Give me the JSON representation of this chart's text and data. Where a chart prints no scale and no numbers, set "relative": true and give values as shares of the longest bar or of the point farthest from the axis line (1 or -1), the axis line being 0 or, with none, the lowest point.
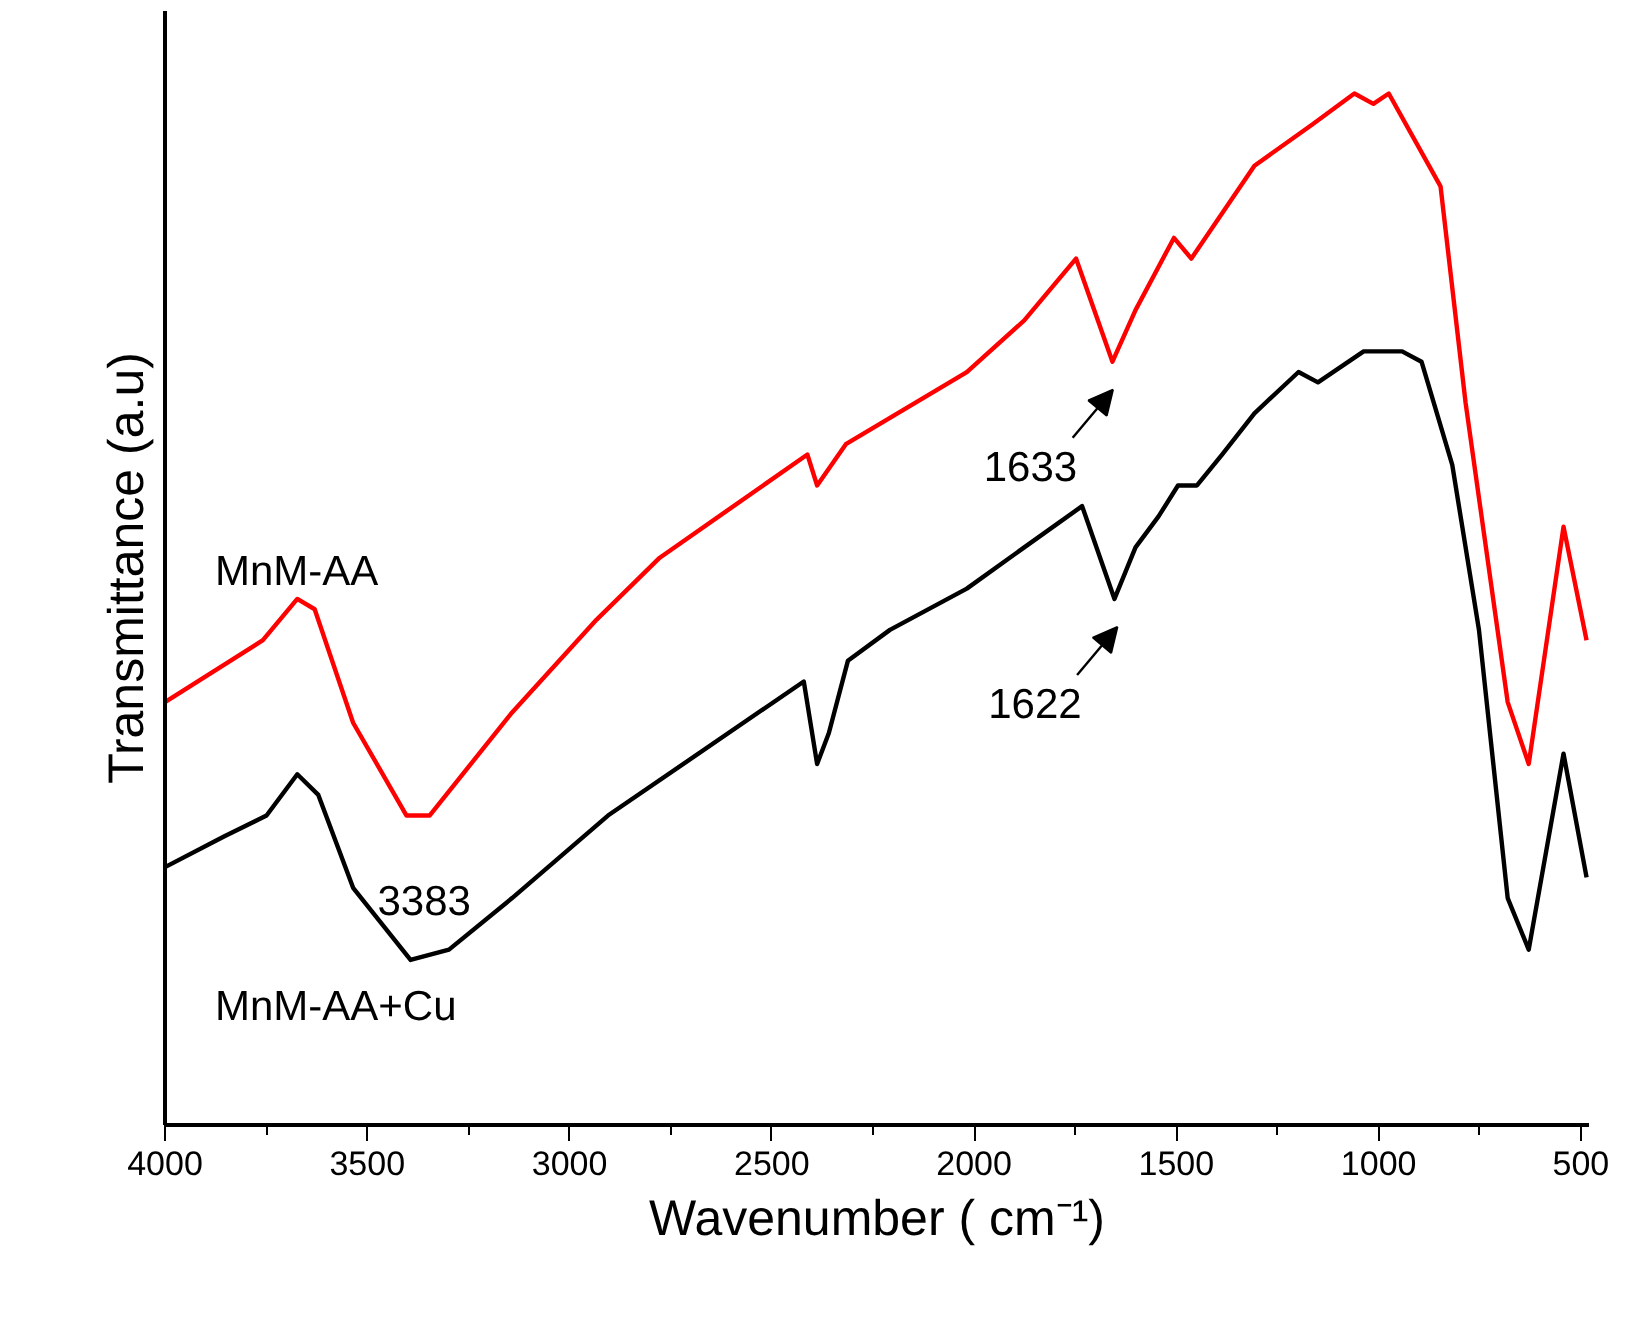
{
  "chart_data": {
    "type": "line",
    "relative": true,
    "xlabel": "Wavenumber ( cm⁻¹)",
    "ylabel": "Transmittance (a.u)",
    "xlim": [
      4000,
      480
    ],
    "xticks": [
      4000,
      3500,
      3000,
      2500,
      2000,
      1500,
      1000,
      500
    ],
    "grid": false,
    "marker": "none",
    "line_style": "solid",
    "series": [
      {
        "name": "MnM-AA",
        "color": "#ff0000",
        "x": [
          4000,
          3758,
          3673,
          3630,
          3535,
          3403,
          3346,
          3142,
          2933,
          2777,
          2412,
          2388,
          2317,
          2018,
          1876,
          1748,
          1658,
          1601,
          1506,
          1463,
          1307,
          1164,
          1060,
          1013,
          975,
          847,
          785,
          681,
          629,
          543,
          486
        ],
        "values": [
          0.41,
          0.47,
          0.51,
          0.5,
          0.39,
          0.3,
          0.3,
          0.4,
          0.49,
          0.55,
          0.65,
          0.62,
          0.66,
          0.73,
          0.78,
          0.84,
          0.74,
          0.79,
          0.86,
          0.84,
          0.93,
          0.97,
          1.0,
          0.99,
          1.0,
          0.91,
          0.7,
          0.41,
          0.35,
          0.58,
          0.47
        ]
      },
      {
        "name": "MnM-AA+Cu",
        "color": "#000000",
        "x": [
          4000,
          3853,
          3749,
          3673,
          3621,
          3535,
          3393,
          3298,
          3142,
          2905,
          2421,
          2388,
          2359,
          2312,
          2208,
          2018,
          1876,
          1733,
          1653,
          1601,
          1544,
          1496,
          1449,
          1387,
          1307,
          1198,
          1150,
          1037,
          942,
          894,
          818,
          752,
          681,
          629,
          543,
          486
        ],
        "values": [
          0.25,
          0.28,
          0.3,
          0.34,
          0.32,
          0.23,
          0.16,
          0.17,
          0.22,
          0.3,
          0.43,
          0.35,
          0.38,
          0.45,
          0.48,
          0.52,
          0.56,
          0.6,
          0.51,
          0.56,
          0.59,
          0.62,
          0.62,
          0.65,
          0.69,
          0.73,
          0.72,
          0.75,
          0.75,
          0.74,
          0.64,
          0.48,
          0.22,
          0.17,
          0.36,
          0.24
        ]
      }
    ],
    "annotations": [
      {
        "text": "3383",
        "x": 3383,
        "y": 0.16
      },
      {
        "text": "1633",
        "x": 1633,
        "y": 0.74
      },
      {
        "text": "1622",
        "x": 1622,
        "y": 0.51
      }
    ]
  }
}
